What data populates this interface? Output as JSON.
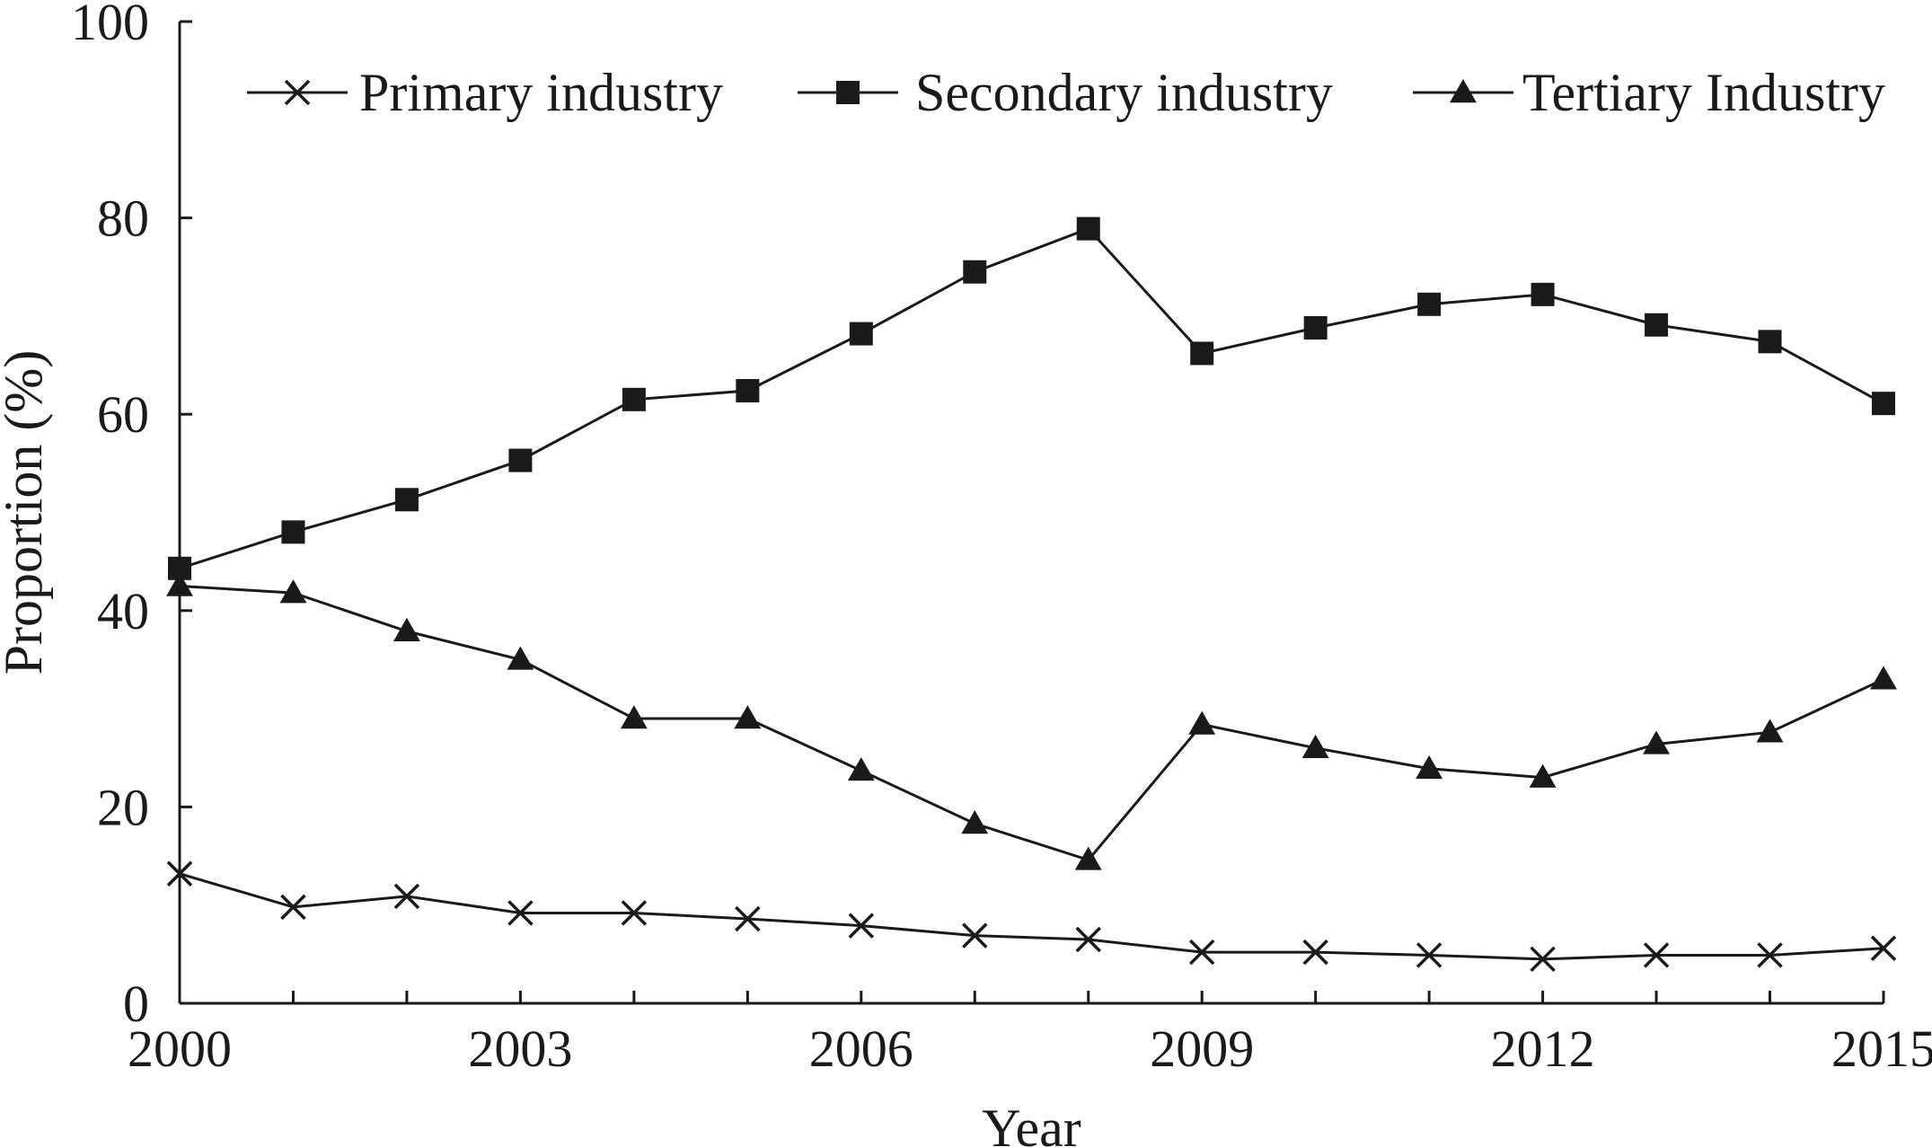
{
  "chart_data": {
    "type": "line",
    "title": "",
    "xlabel": "Year",
    "ylabel": "Proportion (%)",
    "x": [
      2000,
      2001,
      2002,
      2003,
      2004,
      2005,
      2006,
      2007,
      2008,
      2009,
      2010,
      2011,
      2012,
      2013,
      2014,
      2015
    ],
    "xlim": [
      2000,
      2015
    ],
    "ylim": [
      0,
      100
    ],
    "xticks": [
      2000,
      2003,
      2006,
      2009,
      2012,
      2015
    ],
    "xtick_labels": [
      "2000",
      "2003",
      "2006",
      "2009",
      "2012",
      "2015"
    ],
    "yticks": [
      0,
      20,
      40,
      60,
      80,
      100
    ],
    "ytick_labels": [
      "0",
      "20",
      "40",
      "60",
      "80",
      "100"
    ],
    "grid": false,
    "legend_position": "top-right",
    "series": [
      {
        "name": "Primary industry",
        "marker": "x",
        "values": [
          13.2,
          9.8,
          10.9,
          9.2,
          9.2,
          8.6,
          7.9,
          6.9,
          6.5,
          5.2,
          5.2,
          4.9,
          4.5,
          4.9,
          4.9,
          5.6
        ]
      },
      {
        "name": "Secondary industry",
        "marker": "square",
        "values": [
          44.3,
          48.0,
          51.3,
          55.3,
          61.5,
          62.4,
          68.2,
          74.5,
          78.9,
          66.2,
          68.8,
          71.2,
          72.2,
          69.1,
          67.4,
          61.1
        ]
      },
      {
        "name": "Tertiary Industry",
        "marker": "triangle",
        "values": [
          42.5,
          41.8,
          37.9,
          35.0,
          29.0,
          29.0,
          23.7,
          18.3,
          14.6,
          28.4,
          26.0,
          23.9,
          23.0,
          26.4,
          27.6,
          33.0
        ]
      }
    ]
  }
}
